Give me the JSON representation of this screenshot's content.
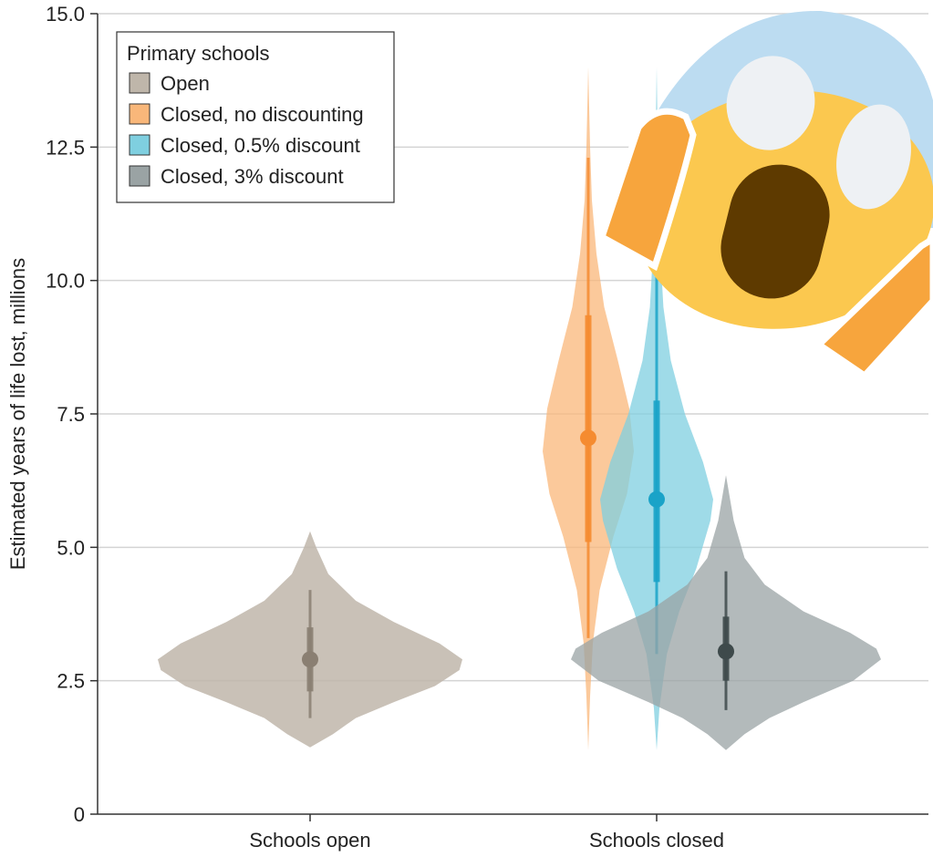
{
  "chart_data": {
    "type": "violin",
    "ylabel": "Estimated years of life lost, millions",
    "ylim": [
      0,
      15
    ],
    "yticks": [
      "0",
      "2.5",
      "5.0",
      "7.5",
      "10.0",
      "12.5",
      "15.0"
    ],
    "ytick_values": [
      0,
      2.5,
      5.0,
      7.5,
      10.0,
      12.5,
      15.0
    ],
    "categories": [
      "Schools open",
      "Schools closed"
    ],
    "grid": true,
    "legend": {
      "title": "Primary schools",
      "position": "top-left",
      "entries": [
        "Open",
        "Closed, no discounting",
        "Closed, 0.5% discount",
        "Closed, 3% discount"
      ]
    },
    "series": [
      {
        "name": "Open",
        "category": "Schools open",
        "color": "#bfb6aa",
        "dark": "#8a7f72",
        "median": 2.9,
        "iqr": [
          2.3,
          3.5
        ],
        "range": [
          1.8,
          4.2
        ],
        "extent": [
          1.25,
          5.3
        ],
        "profile": [
          [
            1.25,
            0.0
          ],
          [
            1.5,
            0.15
          ],
          [
            1.8,
            0.3
          ],
          [
            2.1,
            0.55
          ],
          [
            2.4,
            0.82
          ],
          [
            2.7,
            0.98
          ],
          [
            2.9,
            1.0
          ],
          [
            3.2,
            0.85
          ],
          [
            3.6,
            0.55
          ],
          [
            4.0,
            0.3
          ],
          [
            4.5,
            0.12
          ],
          [
            5.0,
            0.04
          ],
          [
            5.3,
            0.0
          ]
        ]
      },
      {
        "name": "Closed, no discounting",
        "category": "Schools closed",
        "color": "#f9b77a",
        "dark": "#f58b30",
        "median": 7.05,
        "iqr": [
          5.1,
          9.35
        ],
        "range": [
          3.3,
          12.3
        ],
        "extent": [
          1.2,
          14.0
        ],
        "profile": [
          [
            1.2,
            0.0
          ],
          [
            2.2,
            0.04
          ],
          [
            3.2,
            0.1
          ],
          [
            4.2,
            0.25
          ],
          [
            5.2,
            0.55
          ],
          [
            6.0,
            0.85
          ],
          [
            6.8,
            1.0
          ],
          [
            7.6,
            0.9
          ],
          [
            8.5,
            0.65
          ],
          [
            9.5,
            0.35
          ],
          [
            10.5,
            0.18
          ],
          [
            11.5,
            0.08
          ],
          [
            12.5,
            0.04
          ],
          [
            14.0,
            0.0
          ]
        ]
      },
      {
        "name": "Closed, 0.5% discount",
        "category": "Schools closed",
        "color": "#7fcfe0",
        "dark": "#1aa3c8",
        "median": 5.9,
        "iqr": [
          4.35,
          7.75
        ],
        "range": [
          3.0,
          10.1
        ],
        "extent": [
          1.2,
          14.0
        ],
        "profile": [
          [
            1.2,
            0.0
          ],
          [
            2.0,
            0.05
          ],
          [
            3.0,
            0.18
          ],
          [
            3.8,
            0.4
          ],
          [
            4.6,
            0.7
          ],
          [
            5.5,
            0.95
          ],
          [
            5.9,
            1.0
          ],
          [
            6.6,
            0.82
          ],
          [
            7.5,
            0.5
          ],
          [
            8.5,
            0.25
          ],
          [
            9.5,
            0.12
          ],
          [
            11.0,
            0.04
          ],
          [
            14.0,
            0.0
          ]
        ]
      },
      {
        "name": "Closed, 3% discount",
        "category": "Schools closed",
        "color": "#9aa3a4",
        "dark": "#3e4a4b",
        "median": 3.05,
        "iqr": [
          2.5,
          3.7
        ],
        "range": [
          1.95,
          4.55
        ],
        "extent": [
          1.2,
          6.35
        ],
        "profile": [
          [
            1.2,
            0.0
          ],
          [
            1.5,
            0.12
          ],
          [
            1.8,
            0.28
          ],
          [
            2.1,
            0.5
          ],
          [
            2.5,
            0.82
          ],
          [
            2.9,
            1.0
          ],
          [
            3.1,
            0.97
          ],
          [
            3.4,
            0.8
          ],
          [
            3.8,
            0.5
          ],
          [
            4.3,
            0.25
          ],
          [
            4.8,
            0.12
          ],
          [
            5.5,
            0.05
          ],
          [
            6.35,
            0.0
          ]
        ]
      }
    ]
  },
  "overlay": {
    "icon": "screaming-face-emoji"
  }
}
